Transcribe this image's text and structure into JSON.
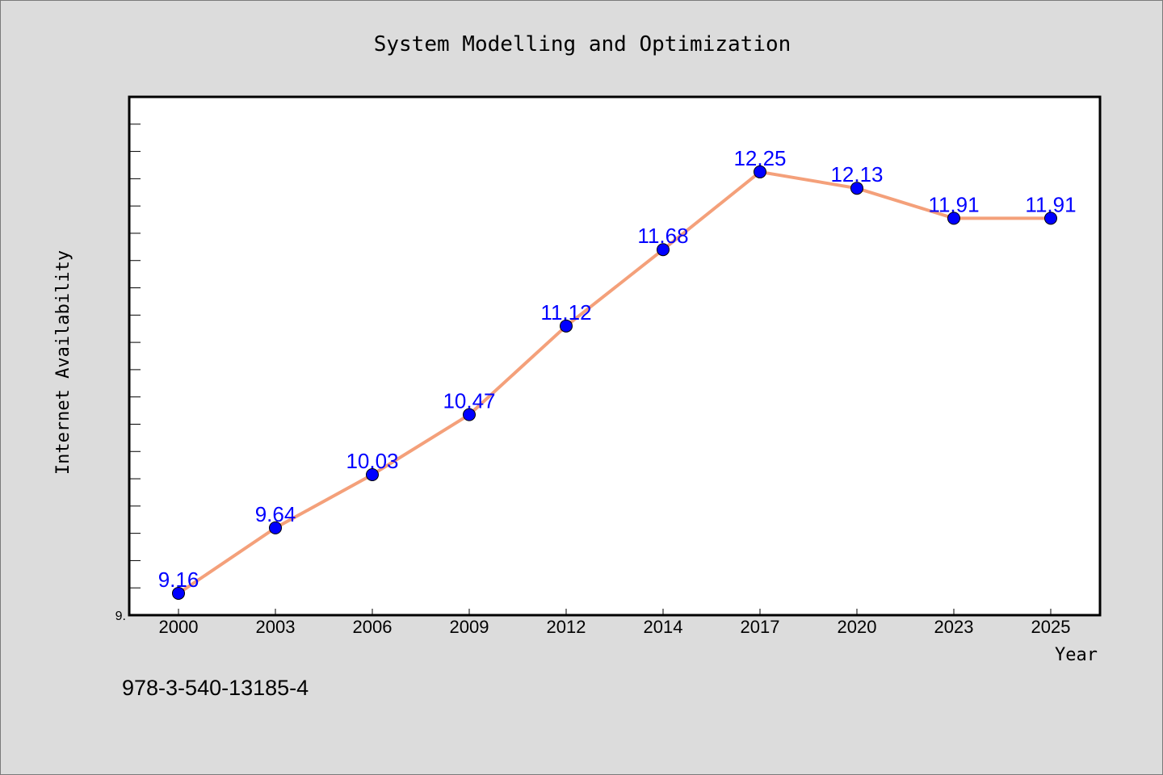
{
  "chart_data": {
    "type": "line",
    "title": "System Modelling and Optimization",
    "xlabel": "Year",
    "ylabel": "Internet Availability",
    "categories": [
      "2000",
      "2003",
      "2006",
      "2009",
      "2012",
      "2014",
      "2017",
      "2020",
      "2023",
      "2025"
    ],
    "values": [
      9.16,
      9.64,
      10.03,
      10.47,
      11.12,
      11.68,
      12.25,
      12.13,
      11.91,
      11.91
    ],
    "data_labels": [
      "9.16",
      "9.64",
      "10.03",
      "10.47",
      "11.12",
      "11.68",
      "12.25",
      "12.13",
      "11.91",
      "11.91"
    ],
    "ylim": [
      9.0,
      12.8
    ],
    "ytick_label": "9.",
    "line_color": "#f4a07a",
    "marker_color": "#0000ff",
    "label_color": "#0000ff",
    "grid": false,
    "legend": "none"
  },
  "footer": {
    "isbn": "978-3-540-13185-4"
  }
}
